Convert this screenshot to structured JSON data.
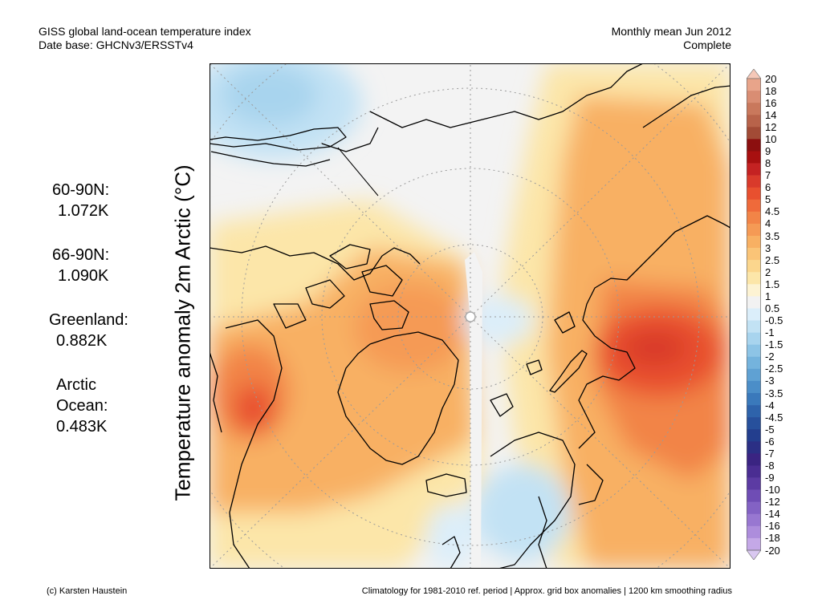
{
  "header": {
    "title": "GISS global land-ocean temperature index",
    "subtitle": "Date base: GHCNv3/ERSSTv4",
    "period": "Monthly mean Jun 2012",
    "status": "Complete"
  },
  "y_axis_label": "Temperature anomaly 2m Arctic (°C)",
  "stats": [
    {
      "label": "60-90N:",
      "value": "1.072K"
    },
    {
      "label": "66-90N:",
      "value": "1.090K"
    },
    {
      "label": "Greenland:",
      "value": "0.882K"
    },
    {
      "label": "Arctic",
      "label2": "Ocean:",
      "value": "0.483K"
    }
  ],
  "colorbar": {
    "labels": [
      "20",
      "18",
      "16",
      "14",
      "12",
      "10",
      "9",
      "8",
      "7",
      "6",
      "5",
      "4.5",
      "4",
      "3.5",
      "3",
      "2.5",
      "2",
      "1.5",
      "1",
      "0.5",
      "-0.5",
      "-1",
      "-1.5",
      "-2",
      "-2.5",
      "-3",
      "-3.5",
      "-4",
      "-4.5",
      "-5",
      "-6",
      "-7",
      "-8",
      "-9",
      "-10",
      "-12",
      "-14",
      "-16",
      "-18",
      "-20"
    ],
    "colors": [
      "#f5c8b8",
      "#e8a48a",
      "#d98d73",
      "#c9785c",
      "#b8634a",
      "#a24b36",
      "#8c0f0f",
      "#a81010",
      "#c42222",
      "#d93a2b",
      "#e8502f",
      "#ef6a3a",
      "#f28447",
      "#f59a55",
      "#f8b063",
      "#fac477",
      "#fbd68d",
      "#fce6a9",
      "#fdf3d3",
      "#f2f2f2",
      "#dbeefa",
      "#c2e2f4",
      "#a8d4ee",
      "#8dc4e6",
      "#74b3dd",
      "#5fa1d3",
      "#4b8ec8",
      "#3a79bb",
      "#2e63ab",
      "#27509c",
      "#233e8e",
      "#2b2f85",
      "#3a2482",
      "#4a2d92",
      "#5c3ba3",
      "#6f4db5",
      "#8362c4",
      "#9877d1",
      "#ad8ddc",
      "#c4a8e7",
      "#d9c8f0"
    ]
  },
  "map": {
    "background_color": "#f3f3f3",
    "coastline_color": "#000000"
  },
  "footer": {
    "credit": "(c) Karsten Haustein",
    "note": "Climatology for 1981-2010 ref. period | Approx. grid box anomalies | 1200 km smoothing radius"
  }
}
